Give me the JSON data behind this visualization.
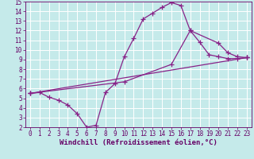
{
  "xlabel": "Windchill (Refroidissement éolien,°C)",
  "xlim": [
    -0.5,
    23.5
  ],
  "ylim": [
    2,
    15
  ],
  "xticks": [
    0,
    1,
    2,
    3,
    4,
    5,
    6,
    7,
    8,
    9,
    10,
    11,
    12,
    13,
    14,
    15,
    16,
    17,
    18,
    19,
    20,
    21,
    22,
    23
  ],
  "yticks": [
    2,
    3,
    4,
    5,
    6,
    7,
    8,
    9,
    10,
    11,
    12,
    13,
    14,
    15
  ],
  "bg_color": "#c5eaea",
  "line_color": "#882288",
  "grid_color": "#ffffff",
  "curve1_x": [
    0,
    1,
    2,
    3,
    4,
    5,
    6,
    7,
    8,
    9,
    10,
    11,
    12,
    13,
    14,
    15,
    16,
    17,
    18,
    19,
    20,
    21,
    22,
    23
  ],
  "curve1_y": [
    5.5,
    5.6,
    5.1,
    4.8,
    4.3,
    3.4,
    2.0,
    2.2,
    5.6,
    6.5,
    9.3,
    11.2,
    13.2,
    13.8,
    14.4,
    14.9,
    14.6,
    12.0,
    10.8,
    9.5,
    9.3,
    9.1,
    9.1,
    9.2
  ],
  "curve2_x": [
    0,
    10,
    15,
    17,
    20,
    21,
    22,
    23
  ],
  "curve2_y": [
    5.5,
    6.7,
    8.5,
    12.0,
    10.7,
    9.7,
    9.3,
    9.2
  ],
  "curve3_x": [
    0,
    23
  ],
  "curve3_y": [
    5.5,
    9.2
  ],
  "marker": "+",
  "markersize": 4,
  "linewidth": 0.9,
  "font_color": "#660066",
  "tick_fontsize": 5.5,
  "xlabel_fontsize": 6.5
}
